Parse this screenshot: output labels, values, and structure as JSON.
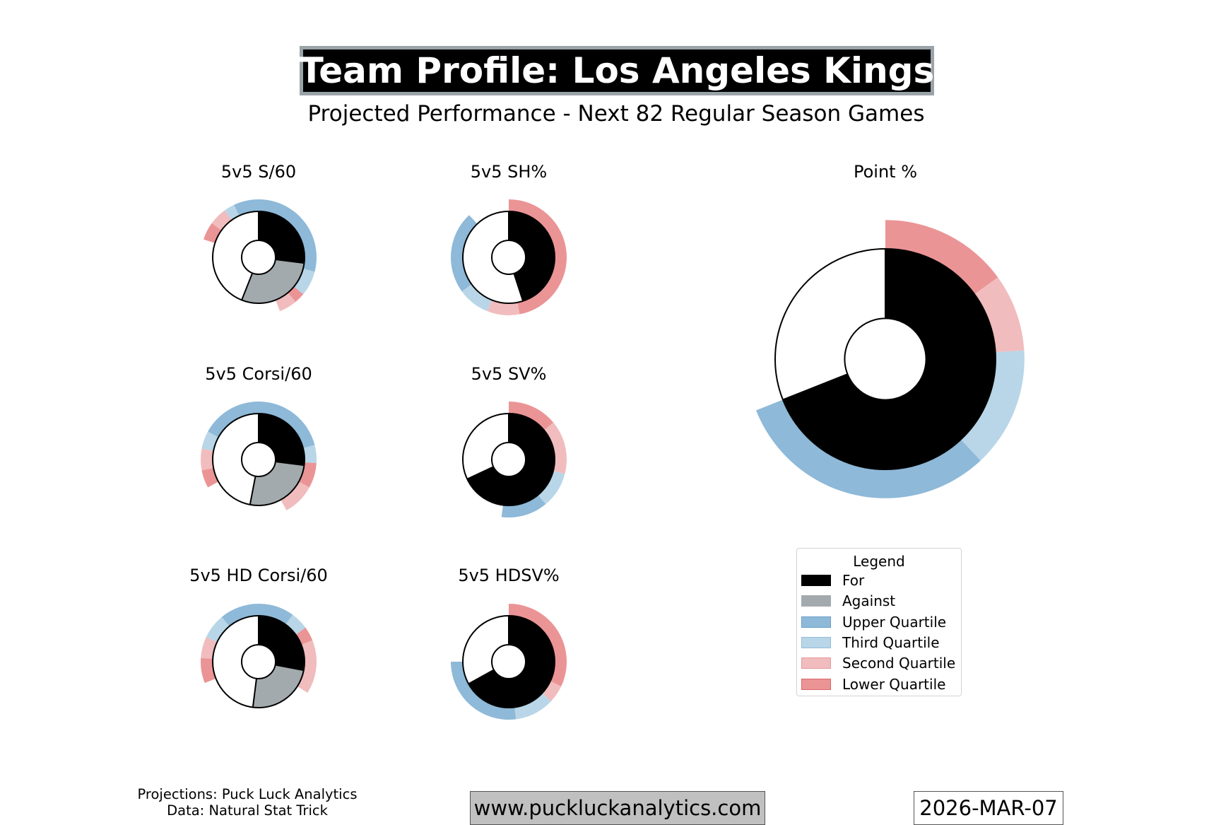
{
  "header": {
    "title": "Team Profile: Los Angeles Kings",
    "subtitle": "Projected Performance - Next 82 Regular Season Games"
  },
  "colors": {
    "for": "#000000",
    "against": "#a2aaad",
    "upper_quartile": "#8eb9d8",
    "third_quartile": "#b8d6e8",
    "second_quartile": "#f1bcbd",
    "lower_quartile": "#eb9496",
    "title_border": "#9aa3a8",
    "url_background": "#c0c0c0"
  },
  "legend": {
    "title": "Legend",
    "items": [
      {
        "label": "For",
        "color_key": "for"
      },
      {
        "label": "Against",
        "color_key": "against"
      },
      {
        "label": "Upper Quartile",
        "color_key": "upper_quartile"
      },
      {
        "label": "Third Quartile",
        "color_key": "third_quartile"
      },
      {
        "label": "Second Quartile",
        "color_key": "second_quartile"
      },
      {
        "label": "Lower Quartile",
        "color_key": "lower_quartile"
      }
    ]
  },
  "chart_data": [
    {
      "type": "pie",
      "title": "5v5 S/60",
      "start": "top",
      "direction": "clockwise",
      "inner": [
        {
          "name": "For",
          "value": 27,
          "color_key": "for"
        },
        {
          "name": "Against",
          "value": 29,
          "color_key": "against"
        }
      ],
      "outer_for": [
        {
          "quartile": "upper_quartile",
          "value": 29
        },
        {
          "quartile": "third_quartile",
          "value": 7
        },
        {
          "quartile": "lower_quartile",
          "value": 3
        },
        {
          "quartile": "second_quartile",
          "value": 5
        }
      ],
      "outer_against": [
        {
          "quartile": "upper_quartile",
          "value": 7
        },
        {
          "quartile": "third_quartile",
          "value": 3
        },
        {
          "quartile": "second_quartile",
          "value": 5
        },
        {
          "quartile": "lower_quartile",
          "value": 5
        }
      ]
    },
    {
      "type": "pie",
      "title": "5v5 SH%",
      "start": "top",
      "direction": "clockwise",
      "inner": [
        {
          "name": "For",
          "value": 45,
          "color_key": "for"
        }
      ],
      "outer_for": [
        {
          "quartile": "lower_quartile",
          "value": 47
        },
        {
          "quartile": "second_quartile",
          "value": 9
        },
        {
          "quartile": "third_quartile",
          "value": 9
        },
        {
          "quartile": "upper_quartile",
          "value": 23
        }
      ]
    },
    {
      "type": "pie",
      "title": "Point %",
      "start": "top",
      "direction": "clockwise",
      "inner": [
        {
          "name": "For",
          "value": 69,
          "color_key": "for"
        }
      ],
      "outer_for": [
        {
          "quartile": "lower_quartile",
          "value": 15
        },
        {
          "quartile": "second_quartile",
          "value": 9
        },
        {
          "quartile": "third_quartile",
          "value": 14
        },
        {
          "quartile": "upper_quartile",
          "value": 31
        }
      ]
    },
    {
      "type": "pie",
      "title": "5v5 Corsi/60",
      "start": "top",
      "direction": "clockwise",
      "inner": [
        {
          "name": "For",
          "value": 27,
          "color_key": "for"
        },
        {
          "name": "Against",
          "value": 26,
          "color_key": "against"
        }
      ],
      "outer_for": [
        {
          "quartile": "upper_quartile",
          "value": 21
        },
        {
          "quartile": "third_quartile",
          "value": 5
        },
        {
          "quartile": "lower_quartile",
          "value": 7
        },
        {
          "quartile": "second_quartile",
          "value": 9
        }
      ],
      "outer_against": [
        {
          "quartile": "upper_quartile",
          "value": 17
        },
        {
          "quartile": "third_quartile",
          "value": 5
        },
        {
          "quartile": "second_quartile",
          "value": 6
        },
        {
          "quartile": "lower_quartile",
          "value": 5
        }
      ]
    },
    {
      "type": "pie",
      "title": "5v5 SV%",
      "start": "top",
      "direction": "clockwise",
      "inner": [
        {
          "name": "For",
          "value": 68,
          "color_key": "for"
        }
      ],
      "outer_for": [
        {
          "quartile": "lower_quartile",
          "value": 14
        },
        {
          "quartile": "second_quartile",
          "value": 15
        },
        {
          "quartile": "third_quartile",
          "value": 10
        },
        {
          "quartile": "upper_quartile",
          "value": 13
        }
      ]
    },
    {
      "type": "pie",
      "title": "5v5 HD Corsi/60",
      "start": "top",
      "direction": "clockwise",
      "inner": [
        {
          "name": "For",
          "value": 28,
          "color_key": "for"
        },
        {
          "name": "Against",
          "value": 24,
          "color_key": "against"
        }
      ],
      "outer_for": [
        {
          "quartile": "upper_quartile",
          "value": 10
        },
        {
          "quartile": "third_quartile",
          "value": 5
        },
        {
          "quartile": "lower_quartile",
          "value": 4
        },
        {
          "quartile": "second_quartile",
          "value": 15
        }
      ],
      "outer_against": [
        {
          "quartile": "upper_quartile",
          "value": 11
        },
        {
          "quartile": "third_quartile",
          "value": 7
        },
        {
          "quartile": "second_quartile",
          "value": 6
        },
        {
          "quartile": "lower_quartile",
          "value": 7
        }
      ]
    },
    {
      "type": "pie",
      "title": "5v5 HDSV%",
      "start": "top",
      "direction": "clockwise",
      "inner": [
        {
          "name": "For",
          "value": 67,
          "color_key": "for"
        }
      ],
      "outer_for": [
        {
          "quartile": "lower_quartile",
          "value": 32
        },
        {
          "quartile": "second_quartile",
          "value": 5
        },
        {
          "quartile": "third_quartile",
          "value": 11
        },
        {
          "quartile": "upper_quartile",
          "value": 27
        }
      ]
    }
  ],
  "footer": {
    "credits_line1": "Projections: Puck Luck Analytics",
    "credits_line2": "Data: Natural Stat Trick",
    "url": "www.puckluckanalytics.com",
    "date": "2026-MAR-07"
  }
}
